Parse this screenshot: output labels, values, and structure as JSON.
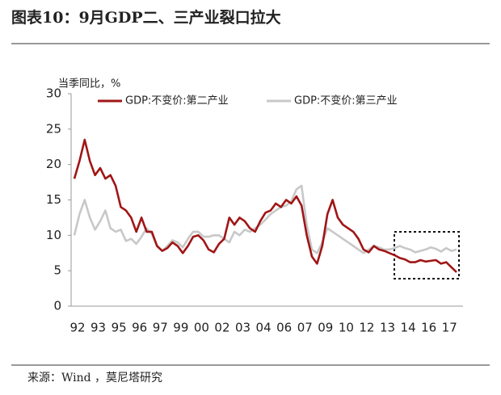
{
  "header": {
    "title": "图表10：9月GDP二、三产业裂口拉大"
  },
  "source": "来源：Wind ，莫尼塔研究",
  "chart_data": {
    "type": "line",
    "y_label": "当季同比，%",
    "categories": [
      "92",
      null,
      null,
      null,
      "93",
      null,
      null,
      null,
      "95",
      null,
      null,
      null,
      "96",
      null,
      null,
      null,
      "97",
      null,
      null,
      null,
      "99",
      null,
      null,
      null,
      "00",
      null,
      null,
      null,
      "02",
      null,
      null,
      null,
      "03",
      null,
      null,
      null,
      "04",
      null,
      null,
      null,
      "06",
      null,
      null,
      null,
      "07",
      null,
      null,
      null,
      "09",
      null,
      null,
      null,
      "10",
      null,
      null,
      null,
      "12",
      null,
      null,
      null,
      "13",
      null,
      null,
      null,
      "14",
      null,
      null,
      null,
      "16",
      null,
      null,
      null,
      "17",
      null,
      null
    ],
    "series": [
      {
        "name": "GDP:不变价:第二产业",
        "color": "#a01616",
        "values": [
          18,
          20.5,
          23.5,
          20.5,
          18.5,
          19.5,
          18,
          18.5,
          17,
          14,
          13.5,
          12.5,
          10.5,
          12.5,
          10.5,
          10.5,
          8.5,
          7.8,
          8.2,
          9,
          8.5,
          7.5,
          8.5,
          9.8,
          10,
          9.3,
          8,
          7.6,
          8.8,
          9.5,
          12.5,
          11.5,
          12.5,
          12,
          11,
          10.5,
          12,
          13.2,
          13.5,
          14.5,
          14,
          15,
          14.5,
          15.5,
          14.2,
          10,
          7,
          6,
          8.5,
          13,
          15,
          12.5,
          11.5,
          11,
          10.5,
          9.5,
          8,
          7.6,
          8.5,
          8,
          7.8,
          7.5,
          7.2,
          6.8,
          6.6,
          6.2,
          6.2,
          6.5,
          6.3,
          6.4,
          6.5,
          6,
          6.2,
          5.5,
          4.8
        ]
      },
      {
        "name": "GDP:不变价:第三产业",
        "color": "#c8c8c8",
        "values": [
          10,
          13,
          15,
          12.5,
          10.8,
          12,
          13.5,
          11,
          10.5,
          10.8,
          9.2,
          9.5,
          8.8,
          9.8,
          11,
          10.2,
          8.5,
          7.8,
          8.5,
          9.3,
          9,
          8.3,
          9.5,
          10.5,
          10.5,
          9.8,
          9.8,
          10,
          10,
          9.5,
          9,
          10.5,
          10,
          10.8,
          10.5,
          11,
          11.5,
          12.2,
          13,
          13.5,
          14,
          14.2,
          14.8,
          16.5,
          17,
          11.5,
          8,
          7.5,
          9,
          11,
          10.5,
          10,
          9.5,
          9,
          8.5,
          8,
          7.5,
          8,
          8.5,
          8.3,
          8,
          8,
          8.2,
          8.5,
          8.2,
          8,
          7.6,
          7.8,
          8,
          8.3,
          8.1,
          7.7,
          8.2,
          7.8,
          8
        ]
      }
    ],
    "ylim": [
      0,
      30
    ],
    "yticks": [
      0,
      5,
      10,
      15,
      20,
      25,
      30
    ],
    "legend": "top",
    "grid": false
  }
}
